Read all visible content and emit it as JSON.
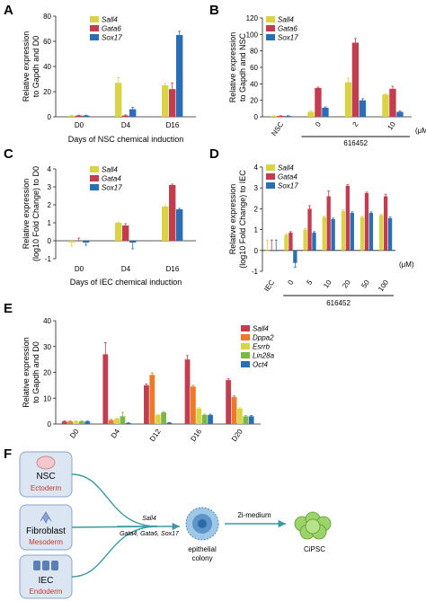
{
  "colors": {
    "yellow": "#d9d445",
    "red": "#c23d50",
    "blue": "#2a6fb4",
    "orange": "#ec7a28",
    "green": "#7ab648"
  },
  "panels": {
    "A": {
      "label": "A"
    },
    "B": {
      "label": "B"
    },
    "C": {
      "label": "C"
    },
    "D": {
      "label": "D"
    },
    "E": {
      "label": "E"
    },
    "F": {
      "label": "F"
    }
  },
  "chart_data": [
    {
      "id": "A",
      "type": "bar",
      "categories": [
        "D0",
        "D4",
        "D16"
      ],
      "series": [
        {
          "name": "Sall4",
          "color": "#d9d445",
          "values": [
            1,
            27,
            25
          ],
          "errors": [
            0.3,
            4,
            1.5
          ]
        },
        {
          "name": "Gata6",
          "color": "#c23d50",
          "values": [
            1,
            1,
            22
          ],
          "errors": [
            0.3,
            0.5,
            5
          ]
        },
        {
          "name": "Sox17",
          "color": "#2a6fb4",
          "values": [
            1,
            6,
            65
          ],
          "errors": [
            0.3,
            1.5,
            3
          ]
        }
      ],
      "ylabel": [
        "Relative expression",
        "to Gapdh and D0"
      ],
      "xlabel": "Days of NSC chemical induction",
      "ylim": [
        0,
        80
      ],
      "yticks": [
        0,
        20,
        40,
        60,
        80
      ]
    },
    {
      "id": "B",
      "type": "bar",
      "categories": [
        "NSC",
        "0",
        "2",
        "10"
      ],
      "series": [
        {
          "name": "Sall4",
          "color": "#d9d445",
          "values": [
            1,
            6,
            42,
            27
          ],
          "errors": [
            0.3,
            1,
            5,
            1
          ]
        },
        {
          "name": "Gata6",
          "color": "#c23d50",
          "values": [
            1,
            35,
            90,
            34
          ],
          "errors": [
            0.3,
            1,
            5,
            3
          ]
        },
        {
          "name": "Sox17",
          "color": "#2a6fb4",
          "values": [
            1,
            11,
            20,
            6
          ],
          "errors": [
            0.3,
            1,
            2,
            1
          ]
        }
      ],
      "ylabel": [
        "Relative expression",
        "to Gapdh and NSC"
      ],
      "group_label": "616452",
      "unit": "(μM)",
      "ylim": [
        0,
        120
      ],
      "yticks": [
        0,
        20,
        40,
        60,
        80,
        100,
        120
      ]
    },
    {
      "id": "C",
      "type": "bar",
      "categories": [
        "D0",
        "D4",
        "D16"
      ],
      "series": [
        {
          "name": "Sall4",
          "color": "#d9d445",
          "values": [
            -0.1,
            1.0,
            1.9
          ],
          "errors": [
            0.2,
            0.05,
            0.05
          ]
        },
        {
          "name": "Gata4",
          "color": "#c23d50",
          "values": [
            0,
            0.85,
            3.1
          ],
          "errors": [
            0.15,
            0.1,
            0.05
          ]
        },
        {
          "name": "Sox17",
          "color": "#2a6fb4",
          "values": [
            -0.1,
            -0.1,
            1.75
          ],
          "errors": [
            0.15,
            0.35,
            0.05
          ]
        }
      ],
      "ylabel": [
        "Relative expression",
        "(log10 Fold Change) to D0"
      ],
      "xlabel": "Days of IEC chemical induction",
      "ylim": [
        -1,
        4
      ],
      "yticks": [
        -1,
        0,
        1,
        2,
        3,
        4
      ]
    },
    {
      "id": "D",
      "type": "bar",
      "categories": [
        "IEC",
        "0",
        "5",
        "10",
        "20",
        "50",
        "100"
      ],
      "series": [
        {
          "name": "Sall4",
          "color": "#d9d445",
          "values": [
            0,
            0.75,
            1.0,
            1.6,
            1.9,
            1.6,
            1.7
          ],
          "errors": [
            0.5,
            0.05,
            0.05,
            0.05,
            0.05,
            0.05,
            0.05
          ]
        },
        {
          "name": "Gata4",
          "color": "#c23d50",
          "values": [
            0,
            0.85,
            2.0,
            2.6,
            3.1,
            2.75,
            2.6
          ],
          "errors": [
            0.5,
            0.05,
            0.15,
            0.25,
            0.05,
            0.05,
            0.1
          ]
        },
        {
          "name": "Sox17",
          "color": "#2a6fb4",
          "values": [
            0,
            -0.6,
            0.85,
            1.5,
            1.8,
            1.8,
            1.55
          ],
          "errors": [
            0.5,
            0.2,
            0.05,
            0.05,
            0.05,
            0.05,
            0.05
          ]
        }
      ],
      "ylabel": [
        "Relative expression",
        "(log10 Fold Change) to IEC"
      ],
      "group_label": "616452",
      "unit": "(μM)",
      "ylim": [
        -1,
        4
      ],
      "yticks": [
        -1,
        0,
        1,
        2,
        3,
        4
      ]
    },
    {
      "id": "E",
      "type": "bar",
      "categories": [
        "D0",
        "D4",
        "D12",
        "D16",
        "D20"
      ],
      "series": [
        {
          "name": "Sall4",
          "color": "#c23d50",
          "values": [
            1,
            27,
            15,
            25,
            17
          ],
          "errors": [
            0.2,
            4.5,
            0.5,
            1.5,
            0.5
          ]
        },
        {
          "name": "Dppa2",
          "color": "#ec7a28",
          "values": [
            1,
            1.5,
            19,
            14.5,
            10.5
          ],
          "errors": [
            0.2,
            0.3,
            0.8,
            0.5,
            0.5
          ]
        },
        {
          "name": "Esrrb",
          "color": "#d9d445",
          "values": [
            1,
            2,
            3.5,
            6,
            6
          ],
          "errors": [
            0.2,
            0.3,
            0.3,
            0.3,
            0.3
          ]
        },
        {
          "name": "Lin28a",
          "color": "#7ab648",
          "values": [
            1,
            3,
            4.5,
            3.5,
            3
          ],
          "errors": [
            0.2,
            1.5,
            0.3,
            0.3,
            0.3
          ]
        },
        {
          "name": "Oct4",
          "color": "#2a6fb4",
          "values": [
            1,
            0.4,
            0.5,
            3.5,
            3
          ],
          "errors": [
            0.2,
            0.1,
            0.1,
            0.3,
            0.3
          ]
        }
      ],
      "ylabel": [
        "Relative expression",
        "to Gapdh and D0"
      ],
      "ylim": [
        0,
        40
      ],
      "yticks": [
        0,
        10,
        20,
        30,
        40
      ]
    }
  ],
  "diagram": {
    "sources": [
      {
        "title": "NSC",
        "subtitle": "Ectoderm"
      },
      {
        "title": "Fibroblast",
        "subtitle": "Mesoderm"
      },
      {
        "title": "IEC",
        "subtitle": "Endoderm"
      }
    ],
    "arrow1_top": "Sall4",
    "arrow1_bottom": "Gata4, Gata6, Sox17",
    "colony_label": [
      "epithelial",
      "colony"
    ],
    "arrow2_label": "2i-medium",
    "ciPSC_label": "CiPSC"
  }
}
